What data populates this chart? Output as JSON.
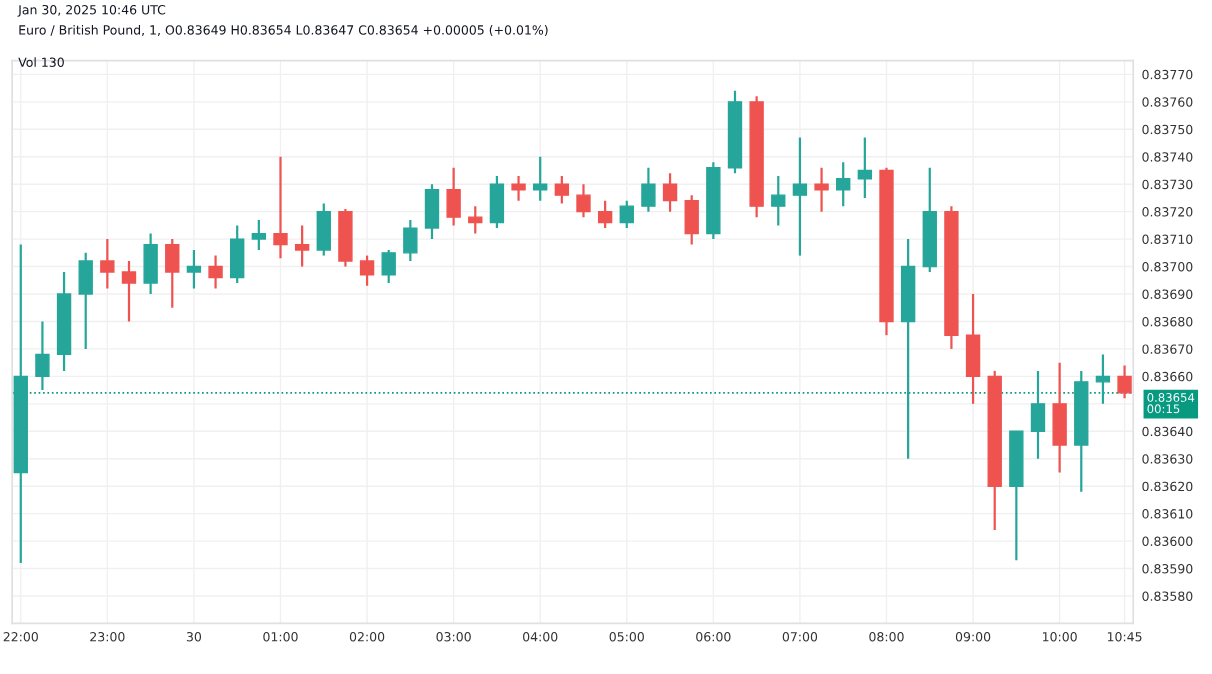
{
  "chart_data": {
    "type": "candlestick",
    "title": "Euro / British Pound, 1, O0.83649 H0.83654 L0.83647 C0.83654 +0.00005 (+0.01%)",
    "annotations": [
      "Jan 30, 2025 10:46 UTC",
      "Vol 130"
    ],
    "x": [
      "2025-01-29T22:00",
      "2025-01-29T22:15",
      "2025-01-29T22:30",
      "2025-01-29T22:45",
      "2025-01-29T23:00",
      "2025-01-29T23:15",
      "2025-01-29T23:30",
      "2025-01-29T23:45",
      "2025-01-30T00:00",
      "2025-01-30T00:15",
      "2025-01-30T00:30",
      "2025-01-30T00:45",
      "2025-01-30T01:00",
      "2025-01-30T01:15",
      "2025-01-30T01:30",
      "2025-01-30T01:45",
      "2025-01-30T02:00",
      "2025-01-30T02:15",
      "2025-01-30T02:30",
      "2025-01-30T02:45",
      "2025-01-30T03:00",
      "2025-01-30T03:15",
      "2025-01-30T03:30",
      "2025-01-30T03:45",
      "2025-01-30T04:00",
      "2025-01-30T04:15",
      "2025-01-30T04:30",
      "2025-01-30T04:45",
      "2025-01-30T05:00",
      "2025-01-30T05:15",
      "2025-01-30T05:30",
      "2025-01-30T05:45",
      "2025-01-30T06:00",
      "2025-01-30T06:15",
      "2025-01-30T06:30",
      "2025-01-30T06:45",
      "2025-01-30T07:00",
      "2025-01-30T07:15",
      "2025-01-30T07:30",
      "2025-01-30T07:45",
      "2025-01-30T08:00",
      "2025-01-30T08:15",
      "2025-01-30T08:30",
      "2025-01-30T08:45",
      "2025-01-30T09:00",
      "2025-01-30T09:15",
      "2025-01-30T09:30",
      "2025-01-30T09:45",
      "2025-01-30T10:00",
      "2025-01-30T10:15",
      "2025-01-30T10:30",
      "2025-01-30T10:45"
    ],
    "ohlc": [
      [
        0.83625,
        0.83708,
        0.83592,
        0.8366
      ],
      [
        0.8366,
        0.8368,
        0.83655,
        0.83668
      ],
      [
        0.83668,
        0.83698,
        0.83662,
        0.8369
      ],
      [
        0.8369,
        0.83705,
        0.8367,
        0.83702
      ],
      [
        0.83702,
        0.8371,
        0.83692,
        0.83698
      ],
      [
        0.83698,
        0.83702,
        0.8368,
        0.83694
      ],
      [
        0.83694,
        0.83712,
        0.8369,
        0.83708
      ],
      [
        0.83708,
        0.8371,
        0.83685,
        0.83698
      ],
      [
        0.83698,
        0.83706,
        0.83692,
        0.837
      ],
      [
        0.837,
        0.83704,
        0.83692,
        0.83696
      ],
      [
        0.83696,
        0.83715,
        0.83694,
        0.8371
      ],
      [
        0.8371,
        0.83717,
        0.83706,
        0.83712
      ],
      [
        0.83712,
        0.8374,
        0.83703,
        0.83708
      ],
      [
        0.83708,
        0.83715,
        0.837,
        0.83706
      ],
      [
        0.83706,
        0.83723,
        0.83704,
        0.8372
      ],
      [
        0.8372,
        0.83721,
        0.837,
        0.83702
      ],
      [
        0.83702,
        0.83704,
        0.83693,
        0.83697
      ],
      [
        0.83697,
        0.83706,
        0.83694,
        0.83705
      ],
      [
        0.83705,
        0.83717,
        0.83702,
        0.83714
      ],
      [
        0.83714,
        0.8373,
        0.8371,
        0.83728
      ],
      [
        0.83728,
        0.83736,
        0.83715,
        0.83718
      ],
      [
        0.83718,
        0.83722,
        0.83712,
        0.83716
      ],
      [
        0.83716,
        0.83733,
        0.83714,
        0.8373
      ],
      [
        0.8373,
        0.83733,
        0.83724,
        0.83728
      ],
      [
        0.83728,
        0.8374,
        0.83724,
        0.8373
      ],
      [
        0.8373,
        0.83733,
        0.83723,
        0.83726
      ],
      [
        0.83726,
        0.8373,
        0.83718,
        0.8372
      ],
      [
        0.8372,
        0.83724,
        0.83714,
        0.83716
      ],
      [
        0.83716,
        0.83724,
        0.83714,
        0.83722
      ],
      [
        0.83722,
        0.83736,
        0.8372,
        0.8373
      ],
      [
        0.8373,
        0.83734,
        0.8372,
        0.83724
      ],
      [
        0.83724,
        0.83726,
        0.83708,
        0.83712
      ],
      [
        0.83712,
        0.83738,
        0.8371,
        0.83736
      ],
      [
        0.83736,
        0.83764,
        0.83734,
        0.8376
      ],
      [
        0.8376,
        0.83762,
        0.83718,
        0.83722
      ],
      [
        0.83722,
        0.83733,
        0.83715,
        0.83726
      ],
      [
        0.83726,
        0.83747,
        0.83704,
        0.8373
      ],
      [
        0.8373,
        0.83736,
        0.8372,
        0.83728
      ],
      [
        0.83728,
        0.83738,
        0.83722,
        0.83732
      ],
      [
        0.83732,
        0.83747,
        0.83725,
        0.83735
      ],
      [
        0.83735,
        0.83736,
        0.83675,
        0.8368
      ],
      [
        0.8368,
        0.8371,
        0.8363,
        0.837
      ],
      [
        0.837,
        0.83736,
        0.83698,
        0.8372
      ],
      [
        0.8372,
        0.83722,
        0.8367,
        0.83675
      ],
      [
        0.83675,
        0.8369,
        0.8365,
        0.8366
      ],
      [
        0.8366,
        0.83662,
        0.83604,
        0.8362
      ],
      [
        0.8362,
        0.8364,
        0.83593,
        0.8364
      ],
      [
        0.8364,
        0.83662,
        0.8363,
        0.8365
      ],
      [
        0.8365,
        0.83665,
        0.83625,
        0.83635
      ],
      [
        0.83635,
        0.83662,
        0.83618,
        0.83658
      ],
      [
        0.83658,
        0.83668,
        0.8365,
        0.8366
      ],
      [
        0.8366,
        0.83664,
        0.83652,
        0.83654
      ]
    ],
    "colors": [
      "#26a69a",
      "#26a69a",
      "#26a69a",
      "#26a69a",
      "#ef5350",
      "#ef5350",
      "#26a69a",
      "#ef5350",
      "#26a69a",
      "#ef5350",
      "#26a69a",
      "#26a69a",
      "#ef5350",
      "#ef5350",
      "#26a69a",
      "#ef5350",
      "#ef5350",
      "#26a69a",
      "#26a69a",
      "#26a69a",
      "#ef5350",
      "#ef5350",
      "#26a69a",
      "#ef5350",
      "#26a69a",
      "#ef5350",
      "#ef5350",
      "#ef5350",
      "#26a69a",
      "#26a69a",
      "#ef5350",
      "#ef5350",
      "#26a69a",
      "#26a69a",
      "#ef5350",
      "#26a69a",
      "#26a69a",
      "#ef5350",
      "#26a69a",
      "#26a69a",
      "#ef5350",
      "#26a69a",
      "#26a69a",
      "#ef5350",
      "#ef5350",
      "#ef5350",
      "#26a69a",
      "#26a69a",
      "#ef5350",
      "#26a69a",
      "#26a69a",
      "#ef5350"
    ],
    "xlim": [
      "2025-01-29T21:54",
      "2025-01-30T10:51"
    ],
    "xticks": [
      {
        "value": "2025-01-29T22:00",
        "label": "22:00"
      },
      {
        "value": "2025-01-29T23:00",
        "label": "23:00"
      },
      {
        "value": "2025-01-30T00:00",
        "label": "30"
      },
      {
        "value": "2025-01-30T01:00",
        "label": "01:00"
      },
      {
        "value": "2025-01-30T02:00",
        "label": "02:00"
      },
      {
        "value": "2025-01-30T03:00",
        "label": "03:00"
      },
      {
        "value": "2025-01-30T04:00",
        "label": "04:00"
      },
      {
        "value": "2025-01-30T05:00",
        "label": "05:00"
      },
      {
        "value": "2025-01-30T06:00",
        "label": "06:00"
      },
      {
        "value": "2025-01-30T07:00",
        "label": "07:00"
      },
      {
        "value": "2025-01-30T08:00",
        "label": "08:00"
      },
      {
        "value": "2025-01-30T09:00",
        "label": "09:00"
      },
      {
        "value": "2025-01-30T10:00",
        "label": "10:00"
      },
      {
        "value": "2025-01-30T10:45",
        "label": "10:45"
      }
    ],
    "ylim": [
      0.8357,
      0.83775
    ],
    "yticks": [
      {
        "value": 0.8358,
        "label": "0.83580"
      },
      {
        "value": 0.8359,
        "label": "0.83590"
      },
      {
        "value": 0.836,
        "label": "0.83600"
      },
      {
        "value": 0.8361,
        "label": "0.83610"
      },
      {
        "value": 0.8362,
        "label": "0.83620"
      },
      {
        "value": 0.8363,
        "label": "0.83630"
      },
      {
        "value": 0.8364,
        "label": "0.83640"
      },
      {
        "value": 0.8365,
        "label": null
      },
      {
        "value": 0.8366,
        "label": "0.83660"
      },
      {
        "value": 0.8367,
        "label": "0.83670"
      },
      {
        "value": 0.8368,
        "label": "0.83680"
      },
      {
        "value": 0.8369,
        "label": "0.83690"
      },
      {
        "value": 0.837,
        "label": "0.83700"
      },
      {
        "value": 0.8371,
        "label": "0.83710"
      },
      {
        "value": 0.8372,
        "label": "0.83720"
      },
      {
        "value": 0.8373,
        "label": "0.83730"
      },
      {
        "value": 0.8374,
        "label": "0.83740"
      },
      {
        "value": 0.8375,
        "label": "0.83750"
      },
      {
        "value": 0.8376,
        "label": "0.83760"
      },
      {
        "value": 0.8377,
        "label": "0.83770"
      }
    ],
    "ref_lines": [
      {
        "axis": "y",
        "value": 0.83654,
        "label": "0.83654\n00:15",
        "color": "#089981",
        "line_style": "dotted"
      }
    ],
    "grid": true
  }
}
